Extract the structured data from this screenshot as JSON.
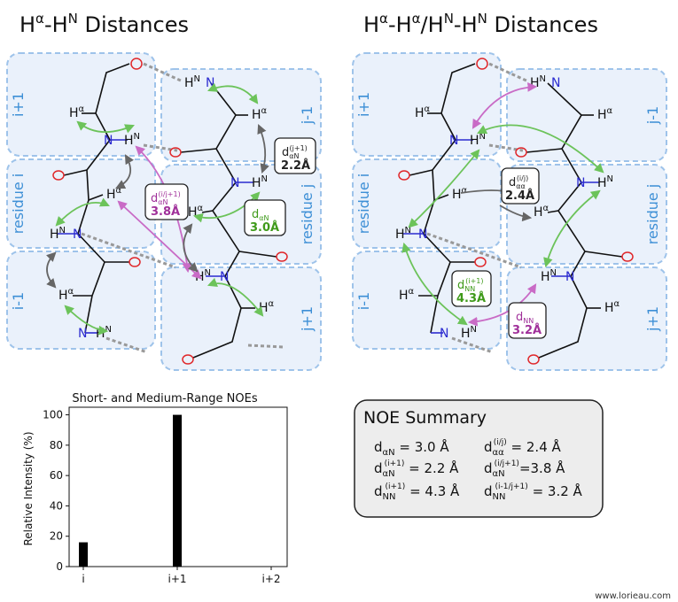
{
  "panels": {
    "left_title": {
      "base": "H",
      "sup1": "α",
      "mid": "-H",
      "sup2": "N",
      "rest": " Distances"
    },
    "right_title": {
      "base": "H",
      "sup1": "α",
      "mid1": "-H",
      "sup2": "α",
      "mid2": "/H",
      "sup3": "N",
      "mid3": "-H",
      "sup4": "N",
      "rest": " Distances"
    }
  },
  "region_labels": {
    "i_plus_1": "i+1",
    "residue_i": "residue i",
    "i_minus_1": "i-1",
    "j_minus_1": "j-1",
    "residue_j": "residue j",
    "j_plus_1": "j+1"
  },
  "atoms": {
    "oxygen": "O",
    "nitrogen": "N",
    "h_base": "H",
    "alpha": "α",
    "n_sup": "N"
  },
  "distance_badges": {
    "left": [
      {
        "id": "d_aN_jplus1",
        "sub": "αN",
        "sup": "(j+1)",
        "value": "2.2Å",
        "color": "#222222"
      },
      {
        "id": "d_aN_ijplus1",
        "sub": "αN",
        "sup": "(i/j+1)",
        "value": "3.8Å",
        "color": "#a0309a"
      },
      {
        "id": "d_aN",
        "sub": "αN",
        "sup": "",
        "value": "3.0Å",
        "color": "#3f9a1a"
      }
    ],
    "right": [
      {
        "id": "d_aa_ij",
        "sub": "αα",
        "sup": "(i/j)",
        "value": "2.4Å",
        "color": "#222222"
      },
      {
        "id": "d_NN_iplus1",
        "sub": "NN",
        "sup": "(i+1)",
        "value": "4.3Å",
        "color": "#3f9a1a"
      },
      {
        "id": "d_NN",
        "sub": "NN",
        "sup": "",
        "value": "3.2Å",
        "color": "#a0309a"
      }
    ]
  },
  "summary": {
    "title": "NOE Summary",
    "rows": [
      [
        {
          "d": "d",
          "sub": "αN",
          "sup": "",
          "eq": " = 3.0 Å"
        },
        {
          "d": "d",
          "sub": "αα",
          "sup": "(i/j)",
          "eq": " = 2.4 Å"
        }
      ],
      [
        {
          "d": "d",
          "sub": "αN",
          "sup": "(i+1)",
          "eq": " = 2.2 Å"
        },
        {
          "d": "d",
          "sub": "αN",
          "sup": "(i/j+1)",
          "eq": "=3.8 Å"
        }
      ],
      [
        {
          "d": "d",
          "sub": "NN",
          "sup": "(i+1)",
          "eq": " = 4.3 Å"
        },
        {
          "d": "d",
          "sub": "NN",
          "sup": "(i-1/j+1)",
          "eq": " = 3.2 Å"
        }
      ]
    ]
  },
  "chart_data": {
    "type": "bar",
    "title": "Short- and Medium-Range NOEs",
    "ylabel": "Relative Intensity (%)",
    "xlabel": "",
    "categories": [
      "i",
      "i+1",
      "i+2"
    ],
    "values": [
      16,
      100,
      0
    ],
    "ylim": [
      0,
      105
    ],
    "yticks": [
      0,
      20,
      40,
      60,
      80,
      100
    ],
    "grid": false,
    "bar_color": "#000000"
  },
  "credit": "www.lorieau.com",
  "colors": {
    "box_fill": "#eaf1fb",
    "box_stroke": "#9ec3ea",
    "label_blue": "#3d8fd6",
    "oxygen": "#e0282b",
    "nitrogen": "#2b2bd0",
    "green": "#6cc35a",
    "magenta": "#c96bc6",
    "gray": "#666666"
  }
}
